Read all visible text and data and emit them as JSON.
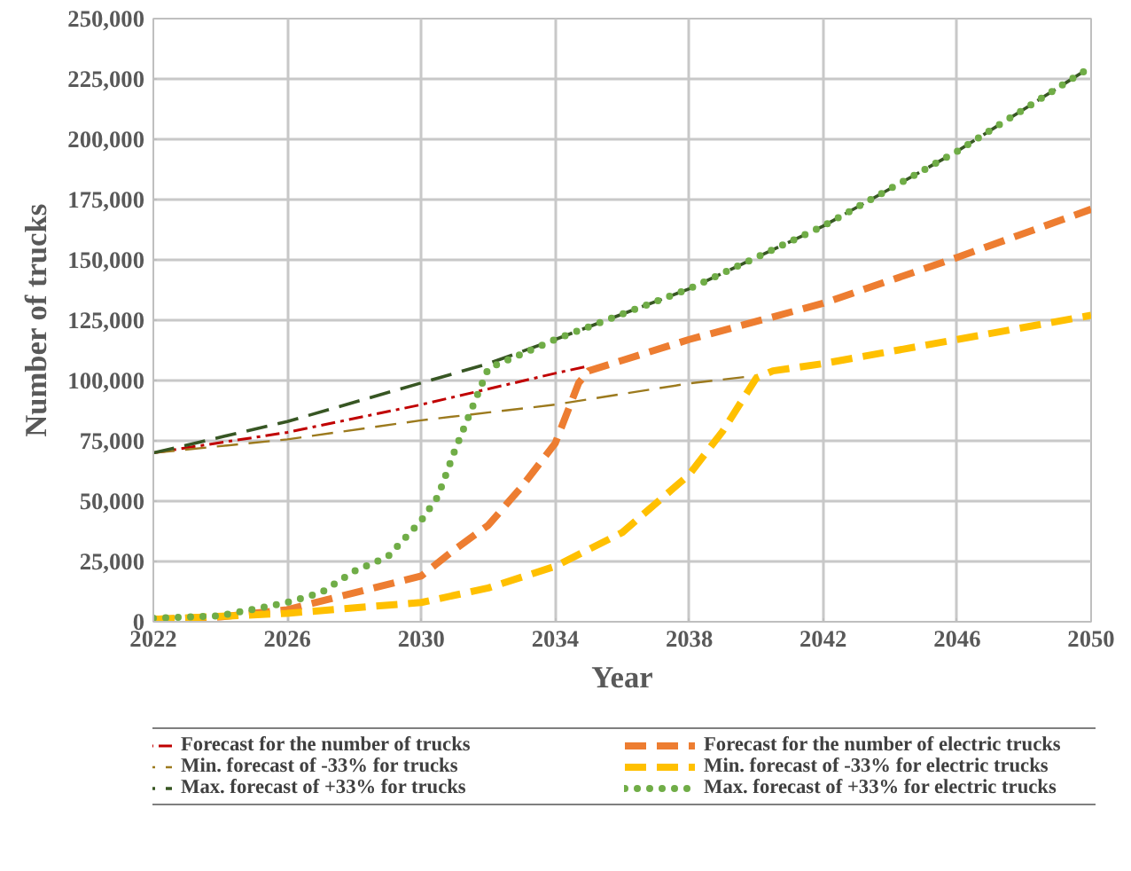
{
  "chart_data": {
    "type": "line",
    "xlabel": "Year",
    "ylabel": "Number of trucks",
    "xlim": [
      2022,
      2050
    ],
    "ylim": [
      0,
      250000
    ],
    "xticks": [
      2022,
      2026,
      2030,
      2034,
      2038,
      2042,
      2046,
      2050
    ],
    "yticks": [
      0,
      {
        "value": 25000,
        "label": "25,000"
      },
      {
        "value": 50000,
        "label": "50,000"
      },
      {
        "value": 75000,
        "label": "75,000"
      },
      {
        "value": 100000,
        "label": "100,000"
      },
      {
        "value": 125000,
        "label": "125,000"
      },
      {
        "value": 150000,
        "label": "150,000"
      },
      {
        "value": 175000,
        "label": "175,000"
      },
      {
        "value": 200000,
        "label": "200,000"
      },
      {
        "value": 225000,
        "label": "225,000"
      },
      {
        "value": 250000,
        "label": "250,000"
      }
    ],
    "grid": true,
    "legend": "bottom",
    "marker": "none",
    "series": [
      {
        "name": "Forecast for the number of trucks",
        "color": "#c00000",
        "line_style": "dashdot",
        "x": [
          2022,
          2026,
          2030,
          2034,
          2035
        ],
        "values": [
          70000,
          78500,
          90000,
          103000,
          106000
        ]
      },
      {
        "name": "Forecast for the number of electric trucks",
        "color": "#ed7d31",
        "line_style": "dashed",
        "x": [
          2022,
          2024,
          2026,
          2028,
          2030,
          2031,
          2032,
          2033,
          2034,
          2034.7,
          2035,
          2038,
          2042,
          2046,
          2050
        ],
        "values": [
          1000,
          2000,
          5000,
          12000,
          19000,
          30000,
          40000,
          56000,
          74000,
          99000,
          104000,
          117000,
          132000,
          151000,
          171000
        ]
      },
      {
        "name": "Min. forecast of -33% for trucks",
        "color": "#9c7a1e",
        "line_style": "dashed",
        "x": [
          2022,
          2026,
          2030,
          2034,
          2038,
          2040
        ],
        "values": [
          70000,
          75600,
          83500,
          90000,
          98800,
          102000
        ]
      },
      {
        "name": "Min. forecast of -33% for electric trucks",
        "color": "#ffc000",
        "line_style": "dashed",
        "x": [
          2022,
          2026,
          2030,
          2032,
          2034,
          2036,
          2038,
          2039,
          2040,
          2040.5,
          2042,
          2046,
          2050
        ],
        "values": [
          1000,
          3500,
          8000,
          14000,
          23000,
          37000,
          61000,
          79000,
          101000,
          104000,
          107000,
          117000,
          127000
        ]
      },
      {
        "name": "Max. forecast of +33% for trucks",
        "color": "#375623",
        "line_style": "dashed",
        "x": [
          2022,
          2026,
          2030,
          2032,
          2034,
          2038,
          2042,
          2046,
          2050
        ],
        "values": [
          70000,
          83000,
          99000,
          107000,
          117000,
          138000,
          164000,
          195000,
          230000
        ]
      },
      {
        "name": "Max. forecast of +33% for electric trucks",
        "color": "#70ad47",
        "line_style": "dotted",
        "x": [
          2022,
          2024,
          2026,
          2027,
          2028,
          2029,
          2030,
          2030.5,
          2031,
          2031.5,
          2032,
          2034,
          2038,
          2042,
          2046,
          2050
        ],
        "values": [
          1500,
          2500,
          8000,
          12000,
          21000,
          27000,
          42000,
          52000,
          71000,
          88000,
          105000,
          117000,
          138000,
          164000,
          195000,
          230000
        ]
      }
    ]
  }
}
